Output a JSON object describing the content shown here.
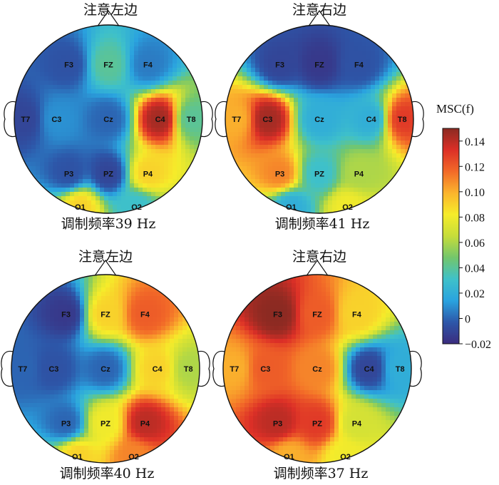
{
  "colors": {
    "colormap": [
      "#3b2c7e",
      "#2d57a9",
      "#2aa3df",
      "#3fc1c9",
      "#73c66c",
      "#c6dd3a",
      "#f6ec2a",
      "#fbb42d",
      "#f26a28",
      "#dc2f27",
      "#8b2a22"
    ]
  },
  "chart_data": {
    "type": "heatmap",
    "colorbar": {
      "title": "MSC(f)",
      "ticks": [
        {
          "value": 0.14,
          "label": "0.14"
        },
        {
          "value": 0.12,
          "label": "0.12"
        },
        {
          "value": 0.1,
          "label": "0.10"
        },
        {
          "value": 0.08,
          "label": "0.08"
        },
        {
          "value": 0.06,
          "label": "0.06"
        },
        {
          "value": 0.04,
          "label": "0.04"
        },
        {
          "value": 0.02,
          "label": "0.02"
        },
        {
          "value": 0,
          "label": "0"
        },
        {
          "value": -0.02,
          "label": "−0.02"
        }
      ],
      "range": [
        -0.02,
        0.15
      ]
    },
    "panels": [
      {
        "heading": "注意左边",
        "caption": "调制频率39 Hz",
        "electrodes": [
          {
            "label": "F3",
            "value": -0.005
          },
          {
            "label": "FZ",
            "value": 0.04
          },
          {
            "label": "F4",
            "value": 0.005
          },
          {
            "label": "T7",
            "value": -0.01
          },
          {
            "label": "C3",
            "value": 0.01
          },
          {
            "label": "Cz",
            "value": 0.0
          },
          {
            "label": "C4",
            "value": 0.145
          },
          {
            "label": "T8",
            "value": 0.04
          },
          {
            "label": "P3",
            "value": -0.005
          },
          {
            "label": "PZ",
            "value": -0.01
          },
          {
            "label": "P4",
            "value": 0.09
          },
          {
            "label": "O1",
            "value": 0.09
          },
          {
            "label": "O2",
            "value": 0.03
          }
        ]
      },
      {
        "heading": "注意右边",
        "caption": "调制频率41 Hz",
        "electrodes": [
          {
            "label": "F3",
            "value": -0.01
          },
          {
            "label": "FZ",
            "value": -0.015
          },
          {
            "label": "F4",
            "value": -0.005
          },
          {
            "label": "T7",
            "value": 0.1
          },
          {
            "label": "C3",
            "value": 0.145
          },
          {
            "label": "Cz",
            "value": 0.02
          },
          {
            "label": "C4",
            "value": 0.02
          },
          {
            "label": "T8",
            "value": 0.13
          },
          {
            "label": "P3",
            "value": 0.11
          },
          {
            "label": "PZ",
            "value": 0.03
          },
          {
            "label": "P4",
            "value": 0.06
          },
          {
            "label": "O1",
            "value": 0.02
          },
          {
            "label": "O2",
            "value": 0.08
          }
        ]
      },
      {
        "heading": "注意左边",
        "caption": "调制频率40 Hz",
        "electrodes": [
          {
            "label": "F3",
            "value": -0.015
          },
          {
            "label": "FZ",
            "value": 0.09
          },
          {
            "label": "F4",
            "value": 0.12
          },
          {
            "label": "T7",
            "value": 0.0
          },
          {
            "label": "C3",
            "value": -0.005
          },
          {
            "label": "Cz",
            "value": 0.0
          },
          {
            "label": "C4",
            "value": 0.09
          },
          {
            "label": "T8",
            "value": 0.06
          },
          {
            "label": "P3",
            "value": 0.0
          },
          {
            "label": "PZ",
            "value": 0.08
          },
          {
            "label": "P4",
            "value": 0.14
          },
          {
            "label": "O1",
            "value": 0.09
          },
          {
            "label": "O2",
            "value": 0.11
          }
        ]
      },
      {
        "heading": "注意右边",
        "caption": "调制频率37 Hz",
        "electrodes": [
          {
            "label": "F3",
            "value": 0.15
          },
          {
            "label": "FZ",
            "value": 0.12
          },
          {
            "label": "F4",
            "value": 0.09
          },
          {
            "label": "T7",
            "value": 0.1
          },
          {
            "label": "C3",
            "value": 0.12
          },
          {
            "label": "Cz",
            "value": 0.11
          },
          {
            "label": "C4",
            "value": -0.01
          },
          {
            "label": "T8",
            "value": 0.02
          },
          {
            "label": "P3",
            "value": 0.14
          },
          {
            "label": "PZ",
            "value": 0.13
          },
          {
            "label": "P4",
            "value": 0.07
          },
          {
            "label": "O1",
            "value": 0.1
          },
          {
            "label": "O2",
            "value": 0.08
          }
        ]
      }
    ]
  }
}
